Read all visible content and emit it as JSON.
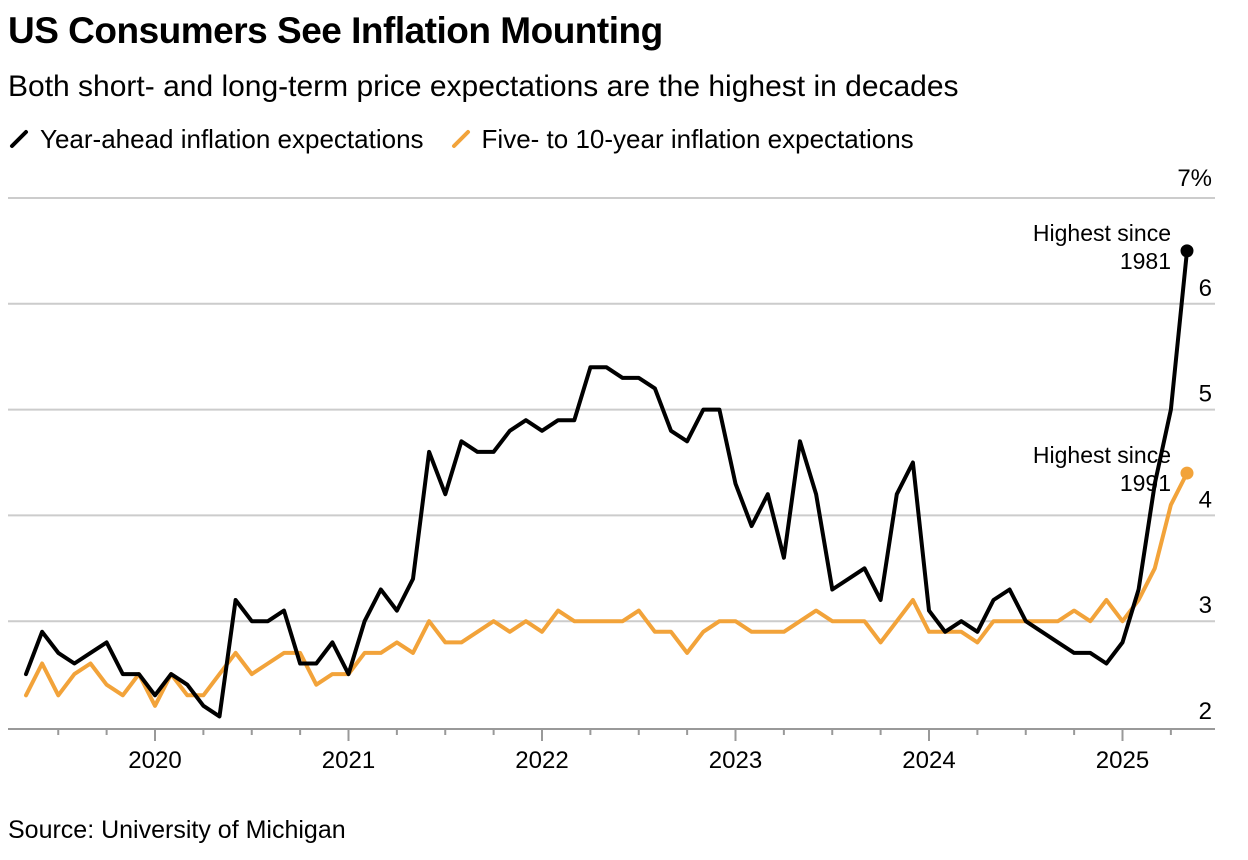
{
  "header": {
    "title": "US Consumers See Inflation Mounting",
    "subtitle": "Both short- and long-term price expectations are the highest in decades"
  },
  "footer": {
    "source": "Source: University of Michigan"
  },
  "colors": {
    "year_ahead": "#000000",
    "long_term": "#f2a33a",
    "grid": "#cccccc",
    "axis": "#999999"
  },
  "chart_data": {
    "type": "line",
    "title": "US Consumers See Inflation Mounting",
    "subtitle": "Both short- and long-term price expectations are the highest in decades",
    "x_start": "2019-05",
    "x_step": "month",
    "x_ticks": [
      "2020",
      "2021",
      "2022",
      "2023",
      "2024",
      "2025"
    ],
    "y_ticks": [
      "2",
      "3",
      "4",
      "5",
      "6",
      "7%"
    ],
    "ylim": [
      2,
      7
    ],
    "grid": true,
    "legend_position": "top-left",
    "series": [
      {
        "name": "Year-ahead inflation expectations",
        "color": "#000000",
        "values": [
          2.5,
          2.9,
          2.7,
          2.6,
          2.7,
          2.8,
          2.5,
          2.5,
          2.3,
          2.5,
          2.4,
          2.2,
          2.1,
          3.2,
          3.0,
          3.0,
          3.1,
          2.6,
          2.6,
          2.8,
          2.5,
          3.0,
          3.3,
          3.1,
          3.4,
          4.6,
          4.2,
          4.7,
          4.6,
          4.6,
          4.8,
          4.9,
          4.8,
          4.9,
          4.9,
          5.4,
          5.4,
          5.3,
          5.3,
          5.2,
          4.8,
          4.7,
          5.0,
          5.0,
          4.3,
          3.9,
          4.2,
          3.6,
          4.7,
          4.2,
          3.3,
          3.4,
          3.5,
          3.2,
          4.2,
          4.5,
          3.1,
          2.9,
          3.0,
          2.9,
          3.2,
          3.3,
          3.0,
          2.9,
          2.8,
          2.7,
          2.7,
          2.6,
          2.8,
          3.3,
          4.3,
          5.0,
          6.5
        ]
      },
      {
        "name": "Five- to 10-year inflation expectations",
        "color": "#f2a33a",
        "values": [
          2.3,
          2.6,
          2.3,
          2.5,
          2.6,
          2.4,
          2.3,
          2.5,
          2.2,
          2.5,
          2.3,
          2.3,
          2.5,
          2.7,
          2.5,
          2.6,
          2.7,
          2.7,
          2.4,
          2.5,
          2.5,
          2.7,
          2.7,
          2.8,
          2.7,
          3.0,
          2.8,
          2.8,
          2.9,
          3.0,
          2.9,
          3.0,
          2.9,
          3.1,
          3.0,
          3.0,
          3.0,
          3.0,
          3.1,
          2.9,
          2.9,
          2.7,
          2.9,
          3.0,
          3.0,
          2.9,
          2.9,
          2.9,
          3.0,
          3.1,
          3.0,
          3.0,
          3.0,
          2.8,
          3.0,
          3.2,
          2.9,
          2.9,
          2.9,
          2.8,
          3.0,
          3.0,
          3.0,
          3.0,
          3.0,
          3.1,
          3.0,
          3.2,
          3.0,
          3.2,
          3.5,
          4.1,
          4.4
        ]
      }
    ],
    "annotations": [
      {
        "series": 0,
        "label_line1": "Highest since",
        "label_line2": "1981"
      },
      {
        "series": 1,
        "label_line1": "Highest since",
        "label_line2": "1991"
      }
    ]
  }
}
